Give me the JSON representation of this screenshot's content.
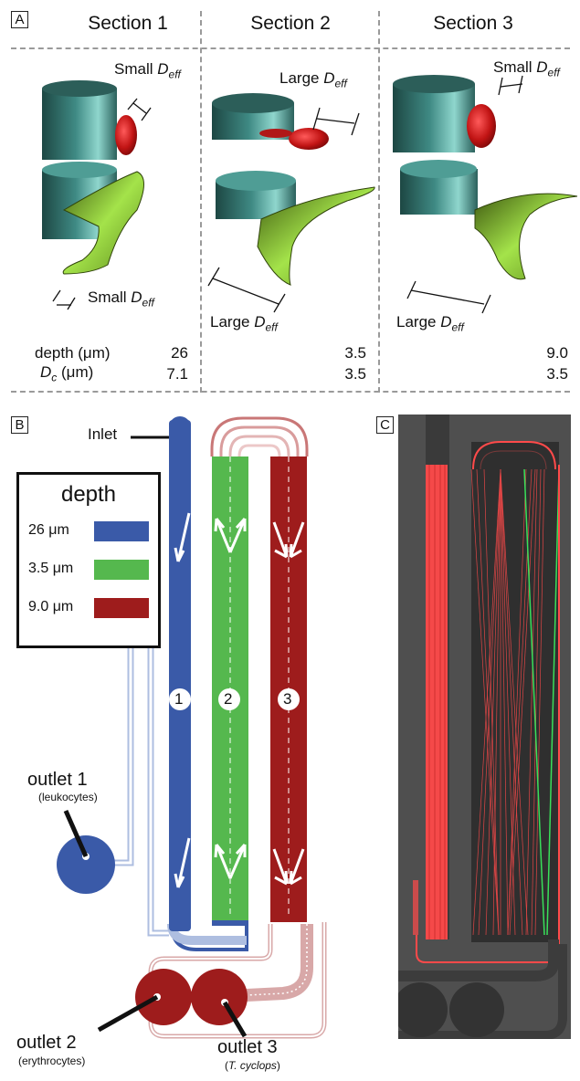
{
  "panelA": {
    "letter": "A",
    "sections": [
      "Section 1",
      "Section 2",
      "Section 3"
    ],
    "deff_labels": {
      "s1_top": {
        "prefix": "Small ",
        "sym": "D",
        "sub": "eff"
      },
      "s1_bottom": {
        "prefix": "Small ",
        "sym": "D",
        "sub": "eff"
      },
      "s2_top": {
        "prefix": "Large ",
        "sym": "D",
        "sub": "eff"
      },
      "s2_bottom": {
        "prefix": "Large ",
        "sym": "D",
        "sub": "eff"
      },
      "s3_top": {
        "prefix": "Small ",
        "sym": "D",
        "sub": "eff"
      },
      "s3_bottom": {
        "prefix": "Large ",
        "sym": "D",
        "sub": "eff"
      }
    },
    "table": {
      "depth_label": "depth (μm)",
      "dc_label": {
        "sym": "D",
        "sub": "c",
        "unit": " (μm)"
      },
      "depth_values": [
        "26",
        "3.5",
        "9.0"
      ],
      "dc_values": [
        "7.1",
        "3.5",
        "3.5"
      ]
    }
  },
  "panelB": {
    "letter": "B",
    "inlet_label": "Inlet",
    "legend": {
      "title": "depth",
      "items": [
        {
          "label": "26 μm",
          "color": "#3a5aa8"
        },
        {
          "label": "3.5 μm",
          "color": "#55b84e"
        },
        {
          "label": "9.0 μm",
          "color": "#9e1c1c"
        }
      ]
    },
    "channel_numbers": [
      "1",
      "2",
      "3"
    ],
    "outlets": [
      {
        "title": "outlet 1",
        "sub": "(leukocytes)"
      },
      {
        "title": "outlet 2",
        "sub": "(erythrocytes)"
      },
      {
        "title": "outlet 3",
        "sub_prefix": "(",
        "sub_italic": "T. cyclops",
        "sub_suffix": ")"
      }
    ]
  },
  "panelC": {
    "letter": "C",
    "colors": {
      "background": "#4f4f4f",
      "trajectory": "#ff4a4a",
      "accent": "#39e05a"
    }
  }
}
